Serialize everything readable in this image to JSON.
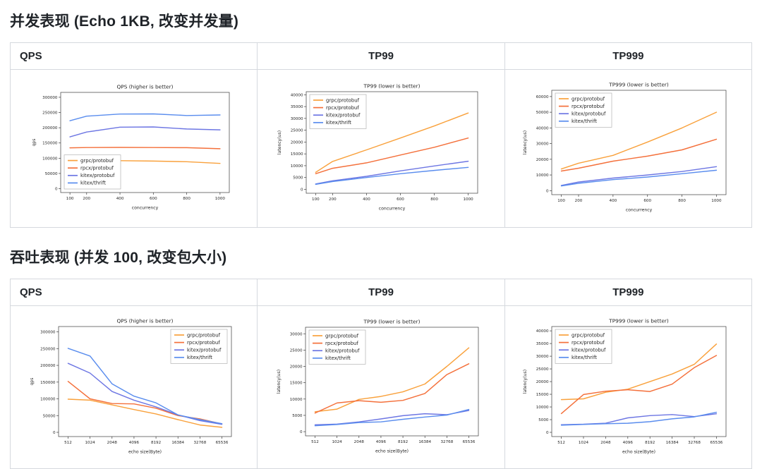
{
  "sections": [
    {
      "title": "并发表现 (Echo 1KB, 改变并发量)",
      "columns": [
        "QPS",
        "TP99",
        "TP999"
      ]
    },
    {
      "title": "吞吐表现 (并发 100, 改变包大小)",
      "columns": [
        "QPS",
        "TP99",
        "TP999"
      ]
    }
  ],
  "palette": {
    "grpc_protobuf": "#f9a13c",
    "rpcx_protobuf": "#f4703b",
    "kitex_protobuf": "#6d76e3",
    "kitex_thrift": "#5a8dee"
  },
  "chart_data": [
    {
      "type": "line",
      "title": "QPS (higher is better)",
      "xlabel": "concurrency",
      "ylabel": "qps",
      "xscale": "linear",
      "x": [
        100,
        200,
        400,
        600,
        800,
        1000
      ],
      "yticks": [
        0,
        50000,
        100000,
        150000,
        200000,
        250000,
        300000
      ],
      "ymax": 316000,
      "legend": "lower-left",
      "series": [
        {
          "name": "grpc/protobuf",
          "color": "#f9a13c",
          "values": [
            96000,
            95000,
            92000,
            90500,
            88500,
            83000
          ]
        },
        {
          "name": "rpcx/protobuf",
          "color": "#f4703b",
          "values": [
            134000,
            135000,
            135500,
            135000,
            134500,
            131000
          ]
        },
        {
          "name": "kitex/protobuf",
          "color": "#6d76e3",
          "values": [
            170000,
            186000,
            202000,
            202500,
            196000,
            193000
          ]
        },
        {
          "name": "kitex/thrift",
          "color": "#5a8dee",
          "values": [
            223000,
            238000,
            245000,
            245500,
            240000,
            242000
          ]
        }
      ]
    },
    {
      "type": "line",
      "title": "TP99 (lower is better)",
      "xlabel": "concurrency",
      "ylabel": "latency(us)",
      "xscale": "linear",
      "x": [
        100,
        200,
        400,
        600,
        800,
        1000
      ],
      "yticks": [
        0,
        5000,
        10000,
        15000,
        20000,
        25000,
        30000,
        35000,
        40000
      ],
      "ymax": 41300,
      "legend": "upper-left",
      "series": [
        {
          "name": "grpc/protobuf",
          "color": "#f9a13c",
          "values": [
            7200,
            11800,
            16700,
            21700,
            26800,
            32300
          ]
        },
        {
          "name": "rpcx/protobuf",
          "color": "#f4703b",
          "values": [
            6600,
            8900,
            11200,
            14500,
            17800,
            21700
          ]
        },
        {
          "name": "kitex/protobuf",
          "color": "#6d76e3",
          "values": [
            2300,
            3600,
            5500,
            7800,
            9900,
            11900
          ]
        },
        {
          "name": "kitex/thrift",
          "color": "#5a8dee",
          "values": [
            2100,
            3300,
            5000,
            6600,
            8000,
            9300
          ]
        }
      ]
    },
    {
      "type": "line",
      "title": "TP999 (lower is better)",
      "xlabel": "concurrency",
      "ylabel": "latency(us)",
      "xscale": "linear",
      "x": [
        100,
        200,
        400,
        600,
        800,
        1000
      ],
      "yticks": [
        0,
        10000,
        20000,
        30000,
        40000,
        50000,
        60000
      ],
      "ymax": 64000,
      "legend": "upper-left",
      "series": [
        {
          "name": "grpc/protobuf",
          "color": "#f9a13c",
          "values": [
            13800,
            17500,
            22500,
            31000,
            40000,
            50000
          ]
        },
        {
          "name": "rpcx/protobuf",
          "color": "#f4703b",
          "values": [
            12500,
            14300,
            18800,
            22000,
            26000,
            32800
          ]
        },
        {
          "name": "kitex/protobuf",
          "color": "#6d76e3",
          "values": [
            3300,
            5500,
            8000,
            10000,
            12200,
            15300
          ]
        },
        {
          "name": "kitex/thrift",
          "color": "#5a8dee",
          "values": [
            3000,
            4700,
            7000,
            8700,
            10800,
            13000
          ]
        }
      ]
    },
    {
      "type": "line",
      "title": "QPS (higher is better)",
      "xlabel": "echo size(Byte)",
      "ylabel": "qps",
      "xscale": "index",
      "x": [
        512,
        1024,
        2048,
        4096,
        8192,
        16384,
        32768,
        65536
      ],
      "yticks": [
        0,
        50000,
        100000,
        150000,
        200000,
        250000,
        300000
      ],
      "ymax": 316000,
      "legend": "upper-right",
      "series": [
        {
          "name": "grpc/protobuf",
          "color": "#f9a13c",
          "values": [
            99000,
            96000,
            82000,
            68000,
            55000,
            38000,
            22000,
            15000
          ]
        },
        {
          "name": "rpcx/protobuf",
          "color": "#f4703b",
          "values": [
            152000,
            100000,
            86000,
            85000,
            72000,
            50000,
            40000,
            25000
          ]
        },
        {
          "name": "kitex/protobuf",
          "color": "#6d76e3",
          "values": [
            206000,
            177000,
            122000,
            96000,
            76000,
            52000,
            35000,
            24000
          ]
        },
        {
          "name": "kitex/thrift",
          "color": "#5a8dee",
          "values": [
            251000,
            228000,
            145000,
            108000,
            88000,
            52000,
            38000,
            26000
          ]
        }
      ]
    },
    {
      "type": "line",
      "title": "TP99 (lower is better)",
      "xlabel": "echo size(Byte)",
      "ylabel": "latency(us)",
      "xscale": "index",
      "x": [
        512,
        1024,
        2048,
        4096,
        8192,
        16384,
        32768,
        65536
      ],
      "yticks": [
        0,
        5000,
        10000,
        15000,
        20000,
        25000,
        30000
      ],
      "ymax": 32000,
      "legend": "upper-left",
      "series": [
        {
          "name": "grpc/protobuf",
          "color": "#f9a13c",
          "values": [
            6100,
            6900,
            9900,
            10800,
            12200,
            14600,
            20000,
            25700
          ]
        },
        {
          "name": "rpcx/protobuf",
          "color": "#f4703b",
          "values": [
            5700,
            8800,
            9500,
            9000,
            9600,
            11700,
            17500,
            20800
          ]
        },
        {
          "name": "kitex/protobuf",
          "color": "#6d76e3",
          "values": [
            2100,
            2300,
            3000,
            3900,
            4900,
            5500,
            5200,
            6500
          ]
        },
        {
          "name": "kitex/thrift",
          "color": "#5a8dee",
          "values": [
            1800,
            2200,
            2800,
            3000,
            3800,
            4500,
            5100,
            6800
          ]
        }
      ]
    },
    {
      "type": "line",
      "title": "TP999 (lower is better)",
      "xlabel": "echo size(Byte)",
      "ylabel": "latency(us)",
      "xscale": "index",
      "x": [
        512,
        1024,
        2048,
        4096,
        8192,
        16384,
        32768,
        65536
      ],
      "yticks": [
        0,
        5000,
        10000,
        15000,
        20000,
        25000,
        30000,
        35000,
        40000
      ],
      "ymax": 41700,
      "legend": "upper-left",
      "series": [
        {
          "name": "grpc/protobuf",
          "color": "#f9a13c",
          "values": [
            12900,
            13200,
            15800,
            17000,
            20000,
            23000,
            26800,
            34800
          ]
        },
        {
          "name": "rpcx/protobuf",
          "color": "#f4703b",
          "values": [
            7400,
            14900,
            16200,
            16800,
            16100,
            19000,
            25500,
            30300
          ]
        },
        {
          "name": "kitex/protobuf",
          "color": "#6d76e3",
          "values": [
            3000,
            3200,
            3600,
            5700,
            6600,
            7000,
            6200,
            7300
          ]
        },
        {
          "name": "kitex/thrift",
          "color": "#5a8dee",
          "values": [
            2800,
            3100,
            3400,
            3600,
            4200,
            5300,
            6100,
            7900
          ]
        }
      ]
    }
  ]
}
